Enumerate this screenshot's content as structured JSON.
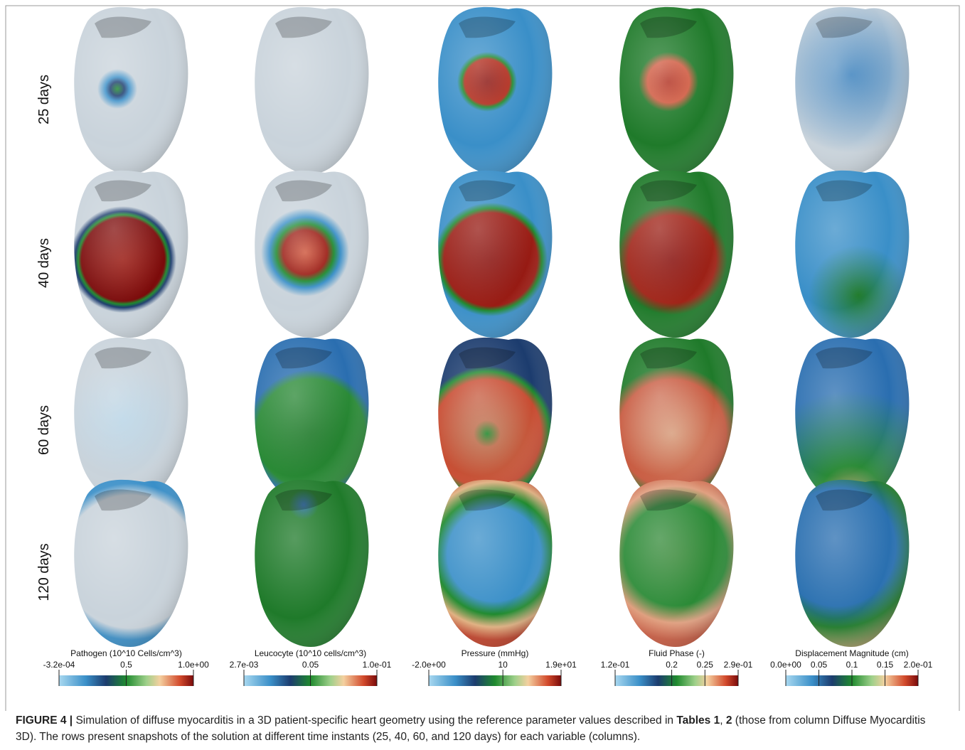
{
  "figure": {
    "row_labels": [
      "25 days",
      "40 days",
      "60 days",
      "120 days"
    ],
    "colorbars": [
      {
        "title": "Pathogen (10^10 Cells/cm^3)",
        "ticks": [
          "-3.2e-04",
          "0.5",
          "1.0e+00"
        ]
      },
      {
        "title": "Leucocyte (10^10 cells/cm^3)",
        "ticks": [
          "2.7e-03",
          "0.05",
          "1.0e-01"
        ]
      },
      {
        "title": "Pressure (mmHg)",
        "ticks": [
          "-2.0e+00",
          "10",
          "1.9e+01"
        ]
      },
      {
        "title": "Fluid Phase (-)",
        "ticks": [
          "1.2e-01",
          "0.2",
          "0.25",
          "2.9e-01"
        ]
      },
      {
        "title": "Displacement Magnitude (cm)",
        "ticks": [
          "0.0e+00",
          "0.05",
          "0.1",
          "0.15",
          "2.0e-01"
        ]
      }
    ],
    "caption": {
      "label": "FIGURE 4 |",
      "text_1": " Simulation of diffuse myocarditis in a 3D patient-specific heart geometry using the reference parameter values described in ",
      "bold_1": "Tables 1",
      "text_2": ", ",
      "bold_2": "2",
      "text_3": " (those from column Diffuse Myocarditis 3D). The rows present snapshots of the solution at different time instants (25, 40, 60, and 120 days) for each variable (columns)."
    }
  }
}
